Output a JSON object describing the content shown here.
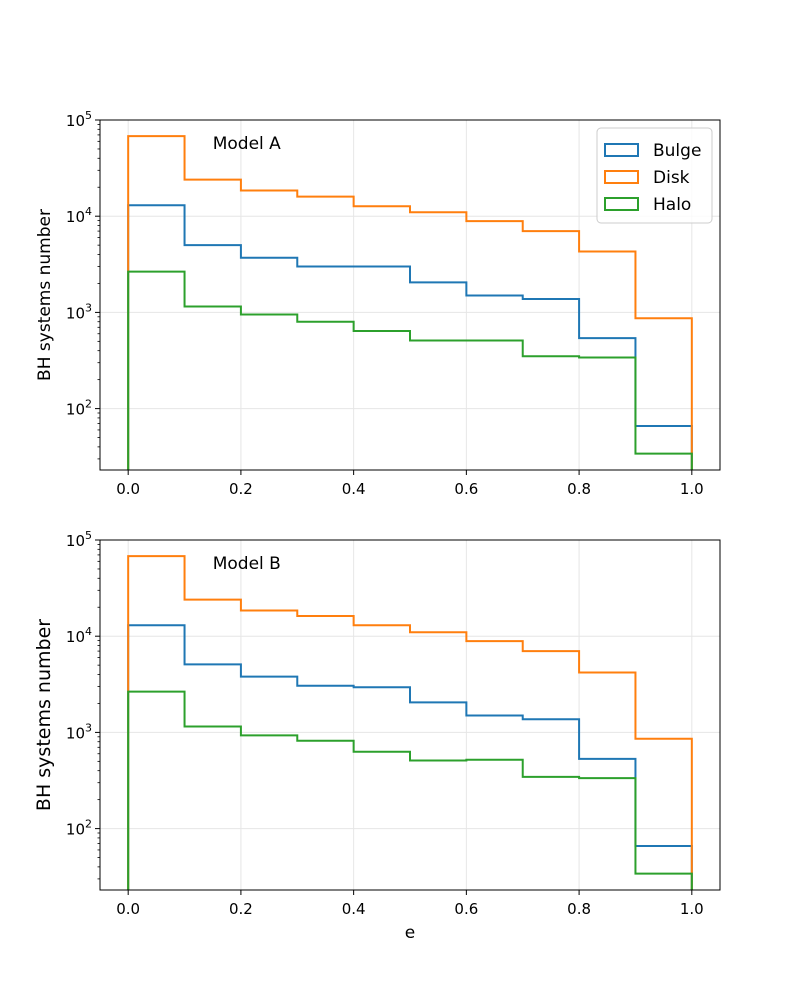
{
  "chart_data": [
    {
      "type": "histogram-step",
      "annotation": "Model A",
      "title": "",
      "xlabel": "",
      "ylabel": "BH systems number",
      "yscale": "log",
      "xlim": [
        -0.05,
        1.05
      ],
      "ylim": [
        23,
        100000
      ],
      "grid": true,
      "x_ticks": [
        0.0,
        0.2,
        0.4,
        0.6,
        0.8,
        1.0
      ],
      "x_tick_labels": [
        "0.0",
        "0.2",
        "0.4",
        "0.6",
        "0.8",
        "1.0"
      ],
      "y_ticks": [
        {
          "value": 100,
          "base": "10",
          "exp": "2"
        },
        {
          "value": 1000,
          "base": "10",
          "exp": "3"
        },
        {
          "value": 10000,
          "base": "10",
          "exp": "4"
        },
        {
          "value": 100000,
          "base": "10",
          "exp": "5"
        }
      ],
      "legend": {
        "position": "top-right",
        "entries": [
          "Bulge",
          "Disk",
          "Halo"
        ]
      },
      "series": [
        {
          "name": "Bulge",
          "color": "#1f77b4",
          "bins": [
            0.0,
            0.1,
            0.2,
            0.3,
            0.4,
            0.5,
            0.6,
            0.7,
            0.8,
            0.9,
            1.0
          ],
          "values": [
            13000,
            5000,
            3700,
            3000,
            3000,
            2050,
            1500,
            1380,
            540,
            66
          ]
        },
        {
          "name": "Disk",
          "color": "#ff7f0e",
          "bins": [
            0.0,
            0.1,
            0.2,
            0.3,
            0.4,
            0.5,
            0.6,
            0.7,
            0.8,
            0.9,
            1.0
          ],
          "values": [
            68000,
            24000,
            18500,
            16000,
            12700,
            11000,
            8900,
            7000,
            4300,
            870
          ]
        },
        {
          "name": "Halo",
          "color": "#2ca02c",
          "bins": [
            0.0,
            0.1,
            0.2,
            0.3,
            0.4,
            0.5,
            0.6,
            0.7,
            0.8,
            0.9,
            1.0
          ],
          "values": [
            2650,
            1150,
            950,
            800,
            640,
            510,
            510,
            350,
            340,
            34
          ]
        }
      ]
    },
    {
      "type": "histogram-step",
      "annotation": "Model B",
      "title": "",
      "xlabel": "e",
      "ylabel": "BH systems number",
      "yscale": "log",
      "xlim": [
        -0.05,
        1.05
      ],
      "ylim": [
        23,
        100000
      ],
      "grid": true,
      "x_ticks": [
        0.0,
        0.2,
        0.4,
        0.6,
        0.8,
        1.0
      ],
      "x_tick_labels": [
        "0.0",
        "0.2",
        "0.4",
        "0.6",
        "0.8",
        "1.0"
      ],
      "y_ticks": [
        {
          "value": 100,
          "base": "10",
          "exp": "2"
        },
        {
          "value": 1000,
          "base": "10",
          "exp": "3"
        },
        {
          "value": 10000,
          "base": "10",
          "exp": "4"
        },
        {
          "value": 100000,
          "base": "10",
          "exp": "5"
        }
      ],
      "legend": null,
      "series": [
        {
          "name": "Bulge",
          "color": "#1f77b4",
          "bins": [
            0.0,
            0.1,
            0.2,
            0.3,
            0.4,
            0.5,
            0.6,
            0.7,
            0.8,
            0.9,
            1.0
          ],
          "values": [
            13000,
            5100,
            3800,
            3050,
            2950,
            2050,
            1500,
            1370,
            530,
            66
          ]
        },
        {
          "name": "Disk",
          "color": "#ff7f0e",
          "bins": [
            0.0,
            0.1,
            0.2,
            0.3,
            0.4,
            0.5,
            0.6,
            0.7,
            0.8,
            0.9,
            1.0
          ],
          "values": [
            68000,
            24000,
            18500,
            16200,
            13000,
            11000,
            8900,
            7000,
            4200,
            860
          ]
        },
        {
          "name": "Halo",
          "color": "#2ca02c",
          "bins": [
            0.0,
            0.1,
            0.2,
            0.3,
            0.4,
            0.5,
            0.6,
            0.7,
            0.8,
            0.9,
            1.0
          ],
          "values": [
            2650,
            1150,
            930,
            820,
            630,
            510,
            520,
            345,
            335,
            34
          ]
        }
      ]
    }
  ]
}
